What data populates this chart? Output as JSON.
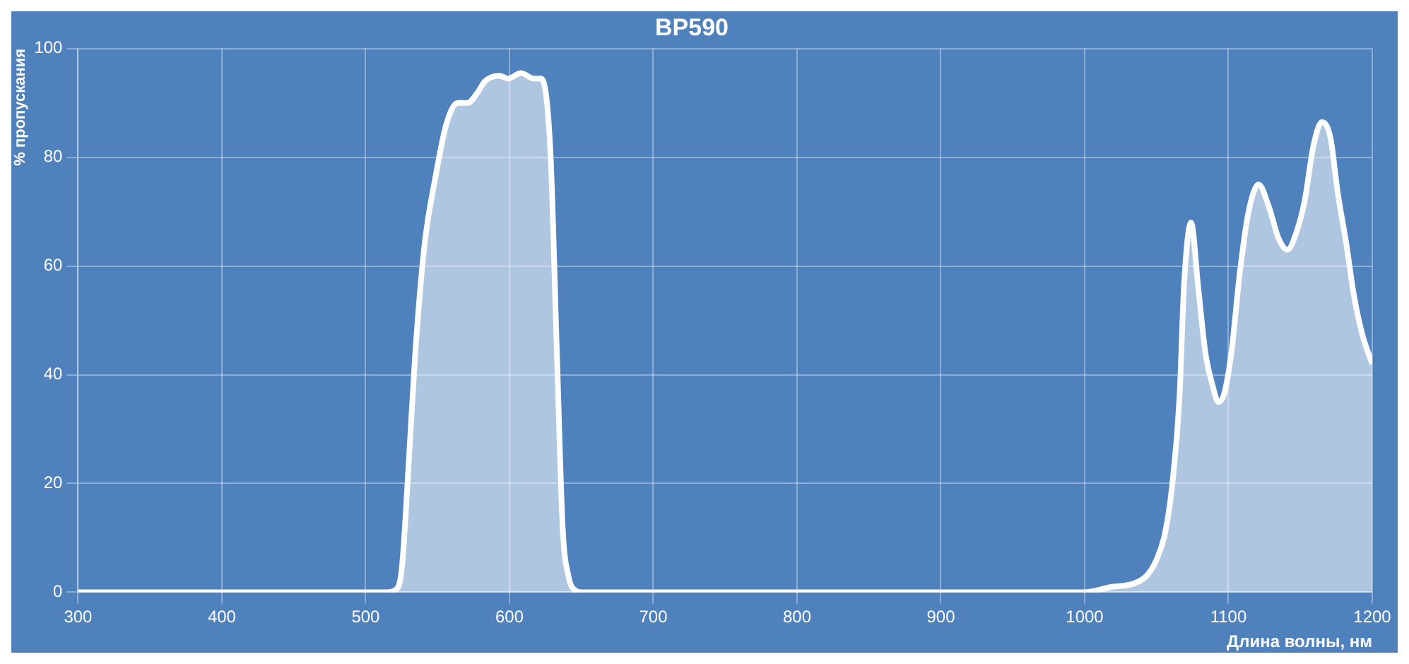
{
  "chart_data": {
    "type": "area",
    "title": "BP590",
    "xlabel": "Длина волны, нм",
    "ylabel": "% пропускания",
    "x": [
      300,
      400,
      500,
      515,
      520,
      525,
      530,
      534.5,
      541,
      549,
      556,
      564,
      571,
      578,
      583,
      593,
      599,
      608,
      617,
      622,
      628.5,
      633,
      637,
      641,
      646,
      650,
      700,
      800,
      900,
      1000,
      1019,
      1033,
      1043,
      1050,
      1056,
      1061,
      1066,
      1069,
      1074,
      1079,
      1084,
      1089,
      1093,
      1097,
      1102,
      1108,
      1114,
      1121,
      1128,
      1135,
      1141,
      1147,
      1153,
      1159,
      1165,
      1171,
      1176,
      1182,
      1187,
      1193,
      1200
    ],
    "series": [
      {
        "color": "#ffffff",
        "values": [
          0,
          0,
          0,
          0,
          0.3,
          4,
          24,
          44,
          64,
          77,
          86,
          90,
          90,
          92,
          94,
          95,
          94.5,
          95.5,
          94.5,
          94.5,
          81,
          44,
          12,
          3,
          0.3,
          0,
          0,
          0,
          0,
          0,
          1,
          1.5,
          3,
          6,
          11,
          20,
          36,
          56,
          68,
          56,
          44,
          38,
          35,
          36.5,
          44,
          59,
          70,
          75,
          71,
          65,
          63,
          66,
          72,
          82,
          86.5,
          83.5,
          73.5,
          64,
          55,
          47.5,
          42
        ]
      }
    ],
    "xlim": [
      300,
      1200
    ],
    "xticks": [
      300,
      400,
      500,
      600,
      700,
      800,
      900,
      1000,
      1100,
      1200
    ],
    "ylim": [
      0,
      100
    ],
    "yticks": [
      0,
      20,
      40,
      60,
      80,
      100
    ],
    "grid": true,
    "legend": false
  }
}
